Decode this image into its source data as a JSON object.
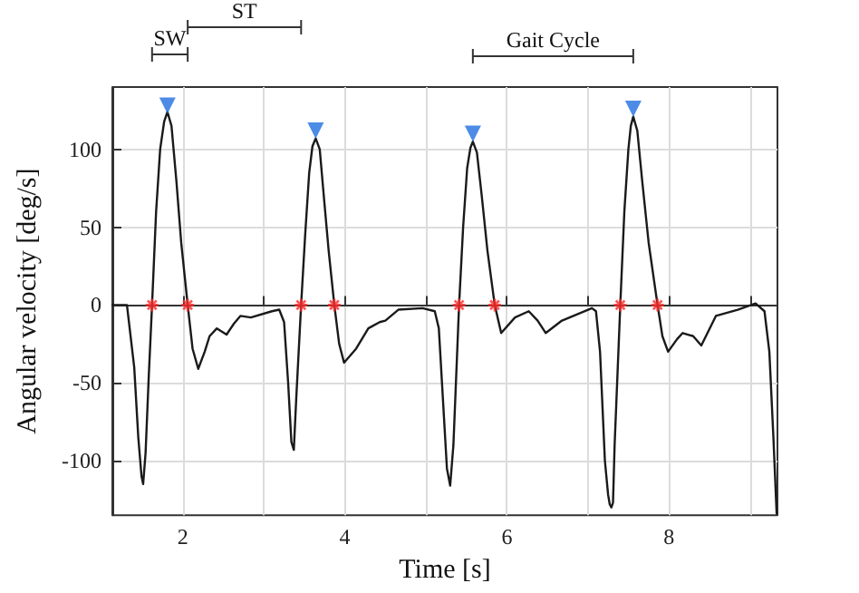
{
  "chart_data": {
    "type": "line",
    "xlabel": "Time [s]",
    "ylabel": "Angular velocity [deg/s]",
    "annotations": [
      "SW",
      "ST",
      "Gait Cycle"
    ],
    "series": [
      {
        "color": "#1a1a1a",
        "marker": "none",
        "x": [
          1.13,
          1.31,
          1.4,
          1.45,
          1.49,
          1.51,
          1.54,
          1.58,
          1.62,
          1.67,
          1.72,
          1.77,
          1.81,
          1.86,
          1.92,
          1.98,
          2.06,
          2.12,
          2.19,
          2.27,
          2.33,
          2.42,
          2.54,
          2.63,
          2.71,
          2.84,
          3.1,
          3.19,
          3.25,
          3.3,
          3.34,
          3.37,
          3.4,
          3.46,
          3.51,
          3.56,
          3.6,
          3.64,
          3.69,
          3.74,
          3.8,
          3.87,
          3.93,
          3.99,
          4.14,
          4.29,
          4.43,
          4.5,
          4.66,
          4.96,
          5.11,
          5.16,
          5.21,
          5.26,
          5.3,
          5.34,
          5.41,
          5.46,
          5.51,
          5.55,
          5.58,
          5.63,
          5.69,
          5.76,
          5.85,
          5.93,
          6.1,
          6.27,
          6.38,
          6.48,
          6.68,
          7.05,
          7.1,
          7.15,
          7.21,
          7.25,
          7.27,
          7.29,
          7.31,
          7.33,
          7.4,
          7.45,
          7.5,
          7.53,
          7.56,
          7.61,
          7.67,
          7.75,
          7.86,
          7.92,
          7.99,
          8.1,
          8.17,
          8.3,
          8.4,
          8.58,
          8.85,
          9.07,
          9.18,
          9.24,
          9.29,
          9.33
        ],
        "values": [
          0,
          0,
          -40,
          -85,
          -110,
          -115,
          -95,
          -45,
          0,
          60,
          100,
          118,
          124,
          115,
          80,
          40,
          0,
          -28,
          -41,
          -30,
          -20,
          -15,
          -19,
          -12,
          -7,
          -8,
          -4,
          -3,
          -11,
          -50,
          -88,
          -93,
          -60,
          0,
          45,
          85,
          102,
          107,
          100,
          70,
          35,
          0,
          -25,
          -37,
          -28,
          -15,
          -11,
          -10,
          -3,
          -2,
          -4,
          -15,
          -60,
          -105,
          -116,
          -90,
          0,
          50,
          88,
          101,
          105,
          98,
          70,
          35,
          0,
          -18,
          -8,
          -4,
          -10,
          -18,
          -10,
          -2,
          -4,
          -30,
          -100,
          -122,
          -128,
          -130,
          -127,
          -90,
          0,
          60,
          100,
          115,
          121,
          112,
          80,
          40,
          0,
          -20,
          -30,
          -22,
          -18,
          -20,
          -26,
          -7,
          -3,
          1,
          -4,
          -30,
          -85,
          -134
        ]
      },
      {
        "type": "scatter",
        "color": "#1f6fe0",
        "marker": "triangle",
        "x": [
          1.81,
          3.64,
          5.58,
          7.56
        ],
        "values": [
          128,
          112,
          110,
          126
        ]
      },
      {
        "type": "scatter",
        "color": "#ff2a2a",
        "marker": "cross",
        "x": [
          1.62,
          2.06,
          3.46,
          3.87,
          5.41,
          5.85,
          7.4,
          7.86
        ],
        "values": [
          0,
          0,
          0,
          0,
          0,
          0,
          0,
          0
        ]
      }
    ],
    "xlim": [
      1.13,
      9.34
    ],
    "xticks": [
      2,
      {
        "value": 3,
        "label": null
      },
      4,
      {
        "value": 5,
        "label": null
      },
      6,
      {
        "value": 7,
        "label": null
      },
      8,
      {
        "value": 9,
        "label": null
      }
    ],
    "ylim": [
      -135,
      140
    ],
    "yticks": [
      -100,
      -50,
      0,
      50,
      100
    ],
    "grid": true
  }
}
